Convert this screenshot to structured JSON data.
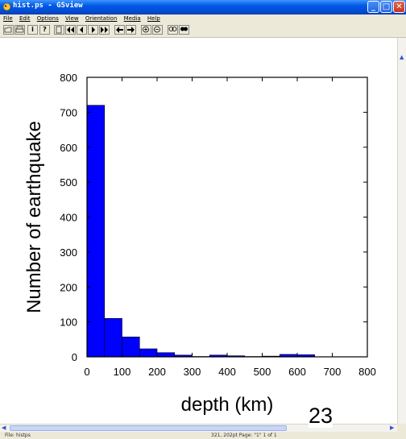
{
  "window": {
    "title": "hist.ps - GSview",
    "controls": {
      "minimize": "_",
      "maximize": "□",
      "close": "✕"
    }
  },
  "menu": [
    "File",
    "Edit",
    "Options",
    "View",
    "Orientation",
    "Media",
    "Help"
  ],
  "toolbar": {
    "buttons": [
      "open-icon",
      "print-icon",
      "info-icon",
      "help-icon",
      "goto-page-icon",
      "first-page-icon",
      "prev-page-icon",
      "next-page-icon",
      "last-page-icon",
      "back-icon",
      "forward-icon",
      "zoom-in-icon",
      "zoom-out-icon",
      "magnify-icon",
      "magnify-alt-icon"
    ],
    "labels": {
      "info": "i",
      "help": "?"
    }
  },
  "status": {
    "file": "File: histps",
    "position": "321, 202pt   Page: \"1\"  1 of 1"
  },
  "slide_number": "23",
  "colors": {
    "bar": "#0000ff",
    "titlebar": "#0058e6"
  },
  "chart_data": {
    "type": "bar",
    "xlabel": "depth (km)",
    "ylabel": "Number of earthquake",
    "xlim": [
      0,
      800
    ],
    "ylim": [
      0,
      800
    ],
    "xticks": [
      "0",
      "100",
      "200",
      "300",
      "400",
      "500",
      "600",
      "700",
      "800"
    ],
    "yticks": [
      "0",
      "100",
      "200",
      "300",
      "400",
      "500",
      "600",
      "700",
      "800"
    ],
    "bin_width": 50,
    "bins": [
      {
        "x0": 0,
        "value": 720
      },
      {
        "x0": 50,
        "value": 110
      },
      {
        "x0": 100,
        "value": 57
      },
      {
        "x0": 150,
        "value": 23
      },
      {
        "x0": 200,
        "value": 12
      },
      {
        "x0": 250,
        "value": 5
      },
      {
        "x0": 300,
        "value": 1
      },
      {
        "x0": 350,
        "value": 5
      },
      {
        "x0": 400,
        "value": 3
      },
      {
        "x0": 450,
        "value": 1
      },
      {
        "x0": 500,
        "value": 2
      },
      {
        "x0": 550,
        "value": 7
      },
      {
        "x0": 600,
        "value": 6
      },
      {
        "x0": 650,
        "value": 0
      },
      {
        "x0": 700,
        "value": 0
      },
      {
        "x0": 750,
        "value": 0
      }
    ]
  }
}
